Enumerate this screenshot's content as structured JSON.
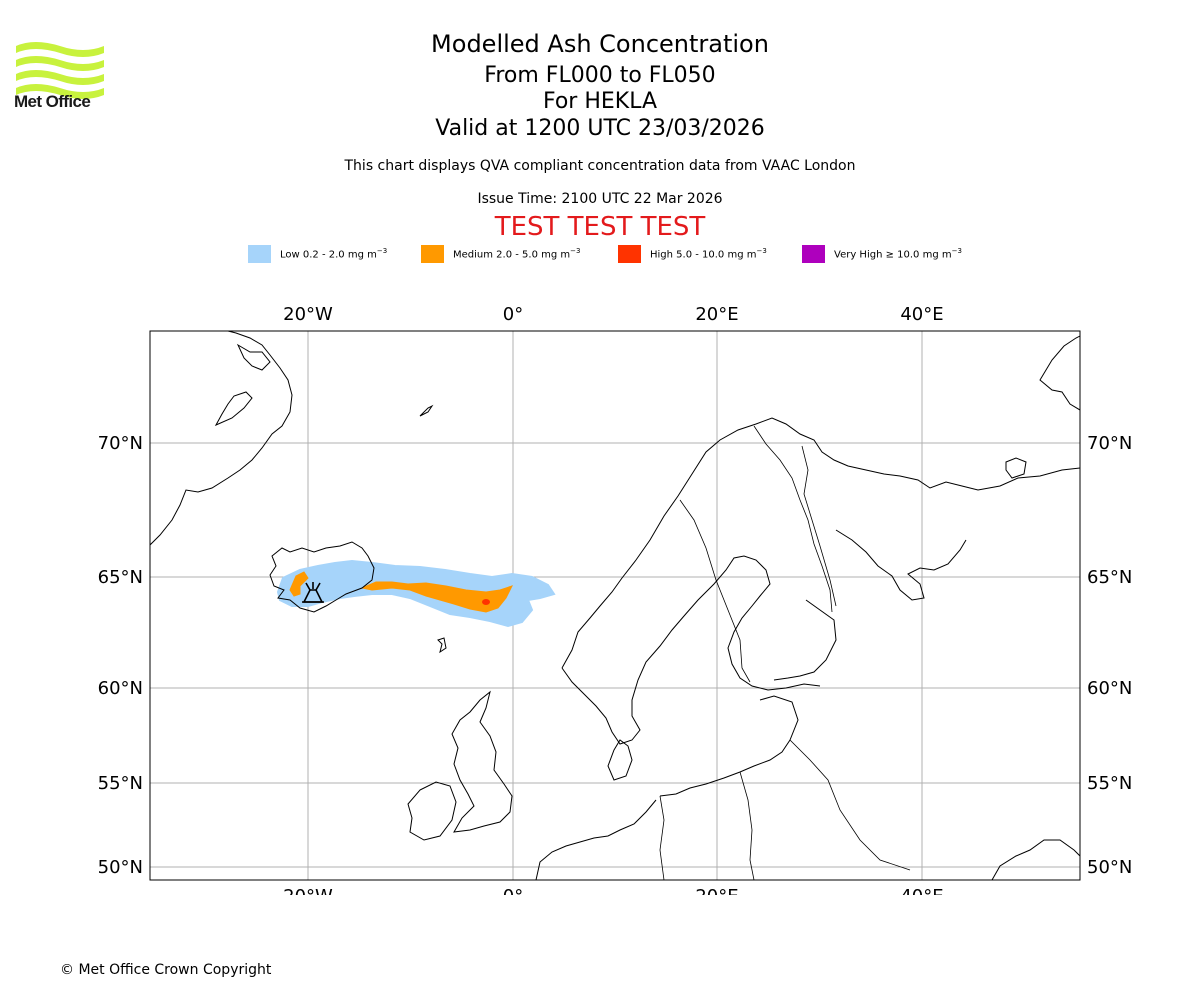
{
  "branding": {
    "logo_text": "Met Office",
    "logo_color": "#c8f23d"
  },
  "title": {
    "line1": "Modelled Ash Concentration",
    "line2": "From FL000 to FL050",
    "line3": "For HEKLA",
    "line4": "Valid at 1200 UTC 23/03/2026"
  },
  "subtitle": "This chart displays QVA compliant concentration data from VAAC London",
  "issue_time": "Issue Time: 2100 UTC 22 Mar 2026",
  "test_banner": "TEST TEST TEST",
  "legend": [
    {
      "label": "Low 0.2 - 2.0 mg m",
      "unit_exp": "−3",
      "color": "#a6d4fa"
    },
    {
      "label": "Medium 2.0 - 5.0 mg m",
      "unit_exp": "−3",
      "color": "#ff9900"
    },
    {
      "label": "High 5.0 - 10.0 mg m",
      "unit_exp": "−3",
      "color": "#ff3300"
    },
    {
      "label": "Very High ≥ 10.0 mg m",
      "unit_exp": "−3",
      "color": "#ae00bd"
    }
  ],
  "map": {
    "lon_ticks": [
      "20°W",
      "0°",
      "20°E",
      "40°E"
    ],
    "lat_ticks": [
      "70°N",
      "65°N",
      "60°N",
      "55°N",
      "50°N"
    ],
    "volcano": "HEKLA"
  },
  "copyright": "© Met Office Crown Copyright"
}
